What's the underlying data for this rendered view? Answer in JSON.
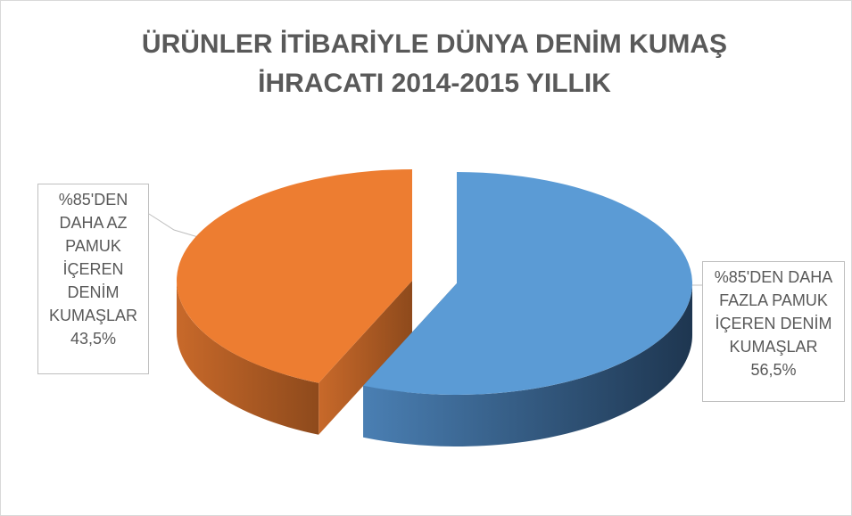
{
  "chart_data": {
    "type": "pie",
    "title": "ÜRÜNLER İTİBARİYLE DÜNYA DENİM KUMAŞ İHRACATI 2014-2015 YILLIK",
    "categories": [
      "%85'DEN DAHA FAZLA PAMUK İÇEREN DENİM KUMAŞLAR",
      "%85'DEN DAHA AZ PAMUK İÇEREN DENİM KUMAŞLAR"
    ],
    "values": [
      56.5,
      43.5
    ],
    "value_labels": [
      "56,5%",
      "43,5%"
    ],
    "colors": [
      "#5b9bd5",
      "#ed7d31"
    ]
  }
}
